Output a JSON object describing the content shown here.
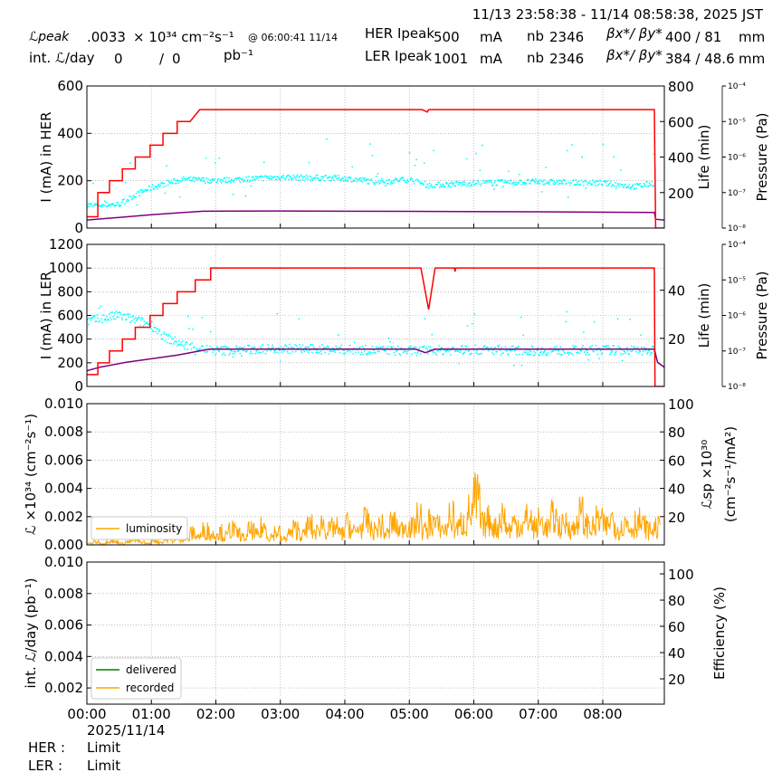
{
  "header": {
    "range": "11/13 23:58:38 - 11/14 08:58:38, 2025 JST",
    "lpeak_label": "ℒpeak",
    "lpeak_value": ".0033",
    "lpeak_unit": "× 10³⁴ cm⁻²s⁻¹",
    "lpeak_time": "@ 06:00:41 11/14",
    "intl_label": "int. ℒ/day",
    "intl_delivered": "0",
    "intl_sep": "/",
    "intl_recorded": "0",
    "intl_unit": "pb⁻¹",
    "her_label": "HER Ipeak",
    "her_peak": "500",
    "ler_label": "LER Ipeak",
    "ler_peak": "1001",
    "ma": "mA",
    "nb_label": "nb",
    "her_nb": "2346",
    "ler_nb": "2346",
    "beta_label": "βx*/ βy*",
    "her_beta": "400  / 81",
    "ler_beta": "384  / 48.6",
    "mm": "mm"
  },
  "footer": {
    "date": "2025/11/14",
    "her_label": "HER :",
    "her_status": "Limit",
    "ler_label": "LER :",
    "ler_status": "Limit"
  },
  "colors": {
    "current": "#ff0000",
    "life": "#800080",
    "pressure": "#00ffff",
    "lumi": "#ffa500",
    "delivered": "#008000",
    "recorded": "#ffa500",
    "grid": "#999999"
  },
  "chart_data": [
    {
      "type": "line",
      "id": "her",
      "ylabel": "I (mA) in HER",
      "ylabel_right": "Life (min)",
      "ylabel_pressure": "Pressure (Pa)",
      "xlim": [
        0,
        8.955
      ],
      "ylim": [
        0,
        600
      ],
      "yticks": [
        0,
        200,
        400,
        600
      ],
      "ylim_right": [
        0,
        800
      ],
      "yticks_right": [
        200,
        400,
        600,
        800
      ],
      "pressure_ticks": [
        "10⁻⁴",
        "10⁻⁵",
        "10⁻⁶",
        "10⁻⁷",
        "10⁻⁸"
      ],
      "xticks": [
        "00:00",
        "01:00",
        "02:00",
        "03:00",
        "04:00",
        "05:00",
        "06:00",
        "07:00",
        "08:00"
      ],
      "current": {
        "t": [
          0,
          0.17,
          0.17,
          0.35,
          0.35,
          0.55,
          0.55,
          0.75,
          0.75,
          0.98,
          0.98,
          1.18,
          1.18,
          1.4,
          1.4,
          1.6,
          1.75,
          5.2,
          5.28,
          5.3,
          8.8,
          8.82,
          8.955
        ],
        "v": [
          48,
          48,
          150,
          150,
          200,
          200,
          250,
          250,
          300,
          300,
          350,
          350,
          400,
          400,
          450,
          450,
          500,
          500,
          490,
          500,
          500,
          0,
          0
        ]
      },
      "life": {
        "t": [
          0,
          0.5,
          1.0,
          1.5,
          1.8,
          3,
          5,
          7,
          8.8,
          8.82,
          8.955
        ],
        "v": [
          45,
          60,
          75,
          88,
          95,
          96,
          94,
          92,
          88,
          50,
          45
        ]
      },
      "pressure_level": {
        "t": [
          0,
          0.5,
          0.75,
          1,
          1.25,
          1.5,
          2,
          3,
          4,
          4.5,
          5,
          5.3,
          6,
          7,
          8,
          8.5,
          8.8
        ],
        "v": [
          95,
          100,
          140,
          170,
          190,
          205,
          200,
          215,
          210,
          195,
          205,
          180,
          190,
          195,
          190,
          175,
          190
        ]
      }
    },
    {
      "type": "line",
      "id": "ler",
      "ylabel": "I (mA) in LER",
      "ylabel_right": "Life (min)",
      "ylabel_pressure": "Pressure (Pa)",
      "xlim": [
        0,
        8.955
      ],
      "ylim": [
        0,
        1200
      ],
      "yticks": [
        0,
        200,
        400,
        600,
        800,
        1000,
        1200
      ],
      "ylim_right": [
        0,
        59
      ],
      "yticks_right": [
        20,
        40
      ],
      "pressure_ticks": [
        "10⁻⁴",
        "10⁻⁵",
        "10⁻⁶",
        "10⁻⁷",
        "10⁻⁸"
      ],
      "current": {
        "t": [
          0,
          0.17,
          0.17,
          0.35,
          0.35,
          0.55,
          0.55,
          0.75,
          0.75,
          0.98,
          0.98,
          1.18,
          1.18,
          1.4,
          1.4,
          1.68,
          1.68,
          1.92,
          1.92,
          5.18,
          5.3,
          5.4,
          5.7,
          5.71,
          5.72,
          8.8,
          8.81,
          8.955
        ],
        "v": [
          100,
          100,
          200,
          200,
          300,
          300,
          400,
          400,
          500,
          500,
          600,
          600,
          700,
          700,
          800,
          800,
          900,
          900,
          1000,
          1000,
          650,
          1000,
          1000,
          970,
          1000,
          1000,
          0,
          0
        ]
      },
      "life": {
        "t": [
          0,
          0.2,
          0.6,
          1.0,
          1.4,
          1.9,
          5.1,
          5.25,
          5.4,
          8.8,
          8.85,
          8.955
        ],
        "v": [
          6.5,
          8,
          10,
          11.5,
          13,
          15.5,
          15.5,
          14,
          15.5,
          15.5,
          10,
          8
        ]
      },
      "pressure_level": {
        "t": [
          0,
          0.5,
          1.0,
          1.2,
          1.5,
          2,
          3,
          4,
          5,
          6,
          7,
          8,
          8.8
        ],
        "v": [
          550,
          600,
          520,
          420,
          350,
          300,
          320,
          310,
          300,
          310,
          300,
          310,
          300
        ]
      }
    },
    {
      "type": "line",
      "id": "lumi",
      "ylabel": "ℒ ×10³⁴ (cm⁻²s⁻¹)",
      "ylabel_right": "ℒsp ×10³⁰",
      "ylabel_right2": "(cm⁻²s⁻¹/mA²)",
      "xlim": [
        0,
        8.955
      ],
      "ylim": [
        0,
        0.01
      ],
      "yticks": [
        "0.000",
        "0.002",
        "0.004",
        "0.006",
        "0.008",
        "0.010"
      ],
      "ylim_right": [
        0,
        100
      ],
      "yticks_right": [
        20,
        40,
        60,
        80,
        100
      ],
      "legend": [
        "luminosity"
      ],
      "legend_loc": "lower-left",
      "x_step_hours": 0.1,
      "luminosity": [
        0.0001,
        0.0002,
        0.0001,
        0.0003,
        0.0002,
        0.0001,
        0.0002,
        0.0003,
        0.0002,
        0.0001,
        0.0003,
        0.0002,
        0.0004,
        0.0003,
        0.0005,
        0.0004,
        0.0008,
        0.0006,
        0.001,
        0.0007,
        0.0009,
        0.0006,
        0.0011,
        0.0008,
        0.0005,
        0.001,
        0.0007,
        0.0012,
        0.0006,
        0.0009,
        0.0004,
        0.0008,
        0.0011,
        0.0007,
        0.0013,
        0.0009,
        0.0015,
        0.001,
        0.0012,
        0.0008,
        0.0014,
        0.0009,
        0.0012,
        0.0016,
        0.001,
        0.0013,
        0.0008,
        0.0015,
        0.0011,
        0.0014,
        0.0012,
        0.0018,
        0.001,
        0.0016,
        0.0013,
        0.0011,
        0.0019,
        0.0012,
        0.0015,
        0.0022,
        0.0031,
        0.0014,
        0.0017,
        0.0012,
        0.002,
        0.0011,
        0.0015,
        0.0013,
        0.0018,
        0.0012,
        0.0016,
        0.0012,
        0.0019,
        0.0013,
        0.0015,
        0.0011,
        0.0021,
        0.0014,
        0.0012,
        0.0017,
        0.0013,
        0.0018,
        0.0011,
        0.0015,
        0.0012,
        0.0016,
        0.0013,
        0.001,
        0.0012
      ]
    },
    {
      "type": "line",
      "id": "intlumi",
      "ylabel": "int. ℒ/day (pb⁻¹)",
      "ylabel_right": "Efficiency (%)",
      "xlim": [
        0,
        8.955
      ],
      "ylim": [
        0.00097,
        0.01
      ],
      "yticks": [
        "0.002",
        "0.004",
        "0.006",
        "0.008",
        "0.010"
      ],
      "ylim_right": [
        0.7,
        109
      ],
      "yticks_right": [
        20,
        40,
        60,
        80,
        100
      ],
      "legend": [
        "delivered",
        "recorded"
      ],
      "legend_loc": "lower-left",
      "delivered": [],
      "recorded": []
    }
  ]
}
